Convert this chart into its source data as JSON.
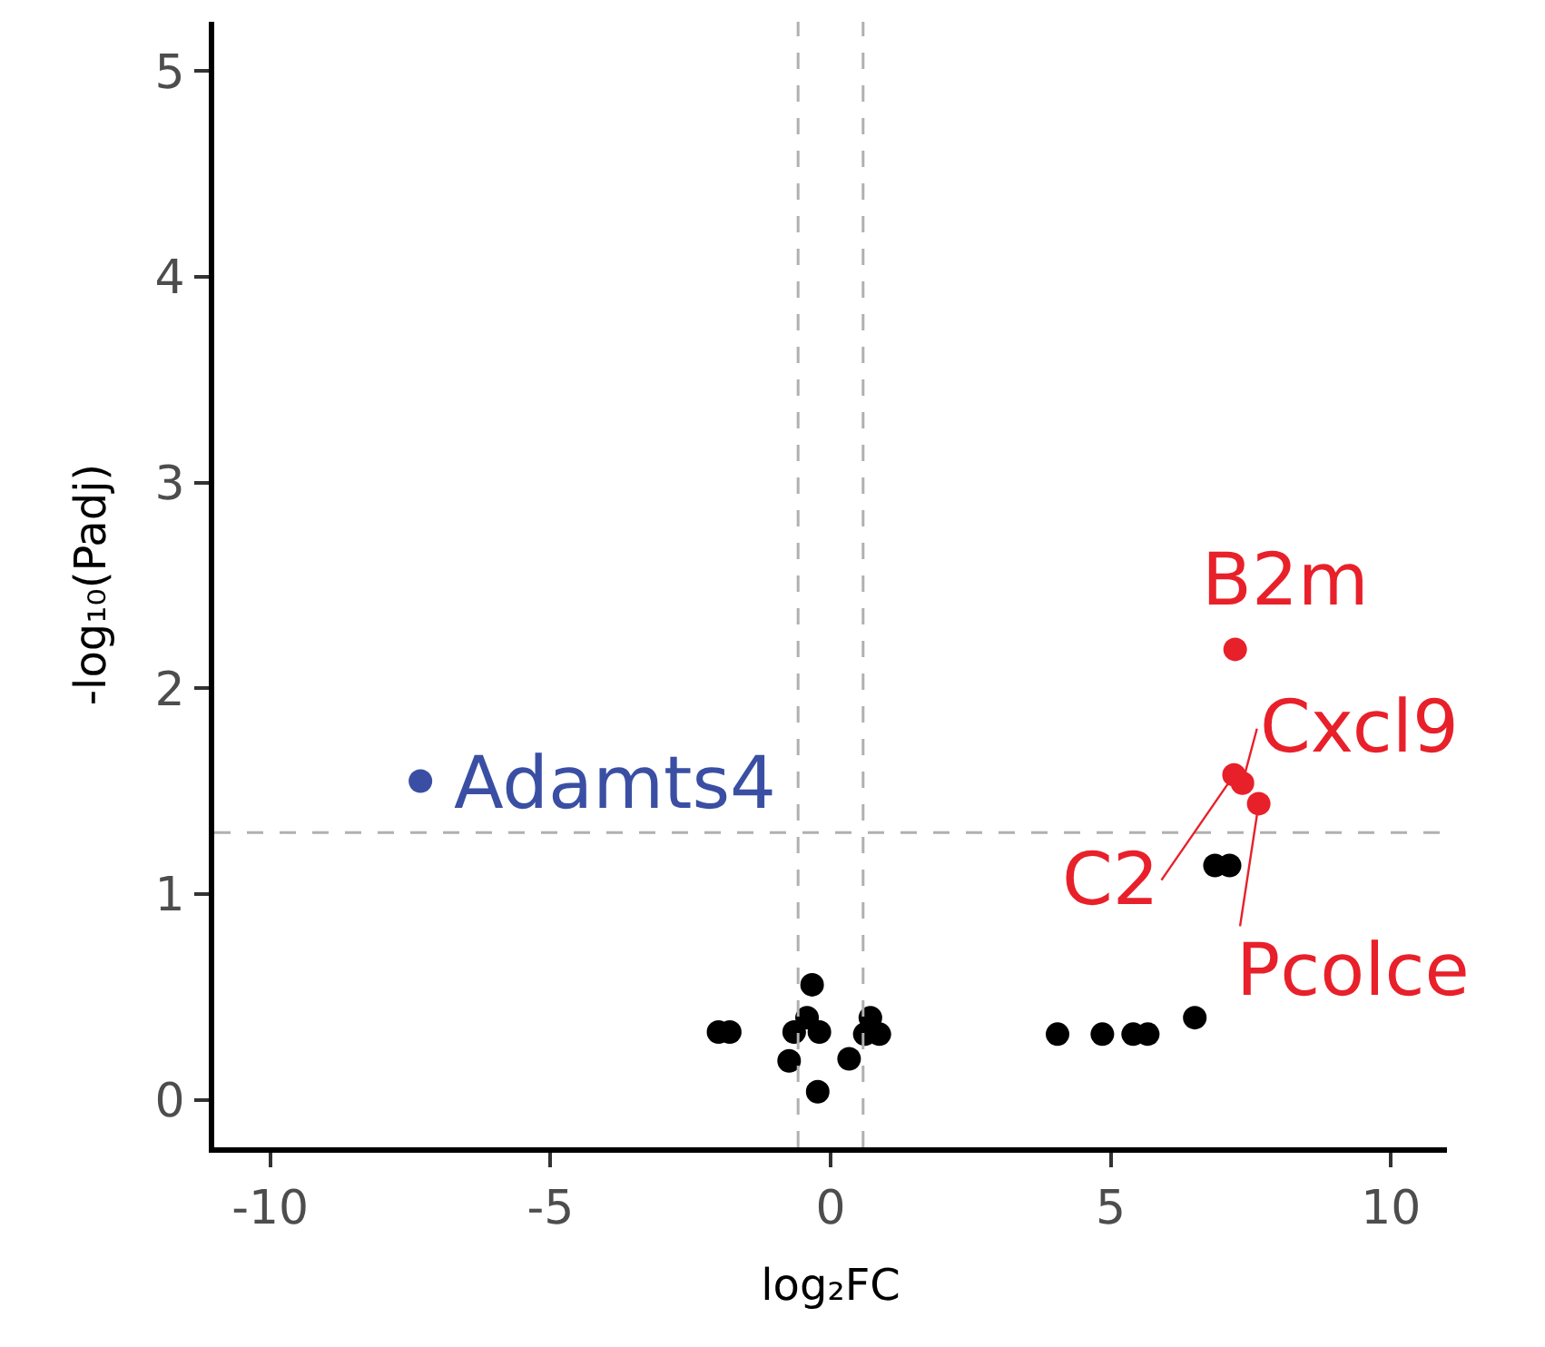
{
  "chart_data": {
    "type": "scatter",
    "xlabel": "log₂FC",
    "ylabel": "-log₁₀(Padj)",
    "xlim": [
      -11,
      11
    ],
    "ylim": [
      -0.23,
      5.24
    ],
    "xticks": [
      -10,
      -5,
      0,
      5,
      10
    ],
    "yticks": [
      0,
      1,
      2,
      3,
      4,
      5
    ],
    "grid": false,
    "marker": "circle",
    "series": [
      {
        "color": "#000000",
        "x": [
          -2.0,
          -1.8,
          -0.33,
          -0.42,
          -0.65,
          -0.2,
          -0.74,
          -0.23,
          0.33,
          0.71,
          0.87,
          0.61,
          4.05,
          4.85,
          5.4,
          5.66,
          6.5,
          6.86,
          7.12
        ],
        "values": [
          0.33,
          0.33,
          0.56,
          0.4,
          0.33,
          0.33,
          0.19,
          0.04,
          0.2,
          0.4,
          0.32,
          0.32,
          0.32,
          0.32,
          0.32,
          0.32,
          0.4,
          1.14,
          1.14
        ]
      },
      {
        "color": "#e8202a",
        "x": [
          7.22,
          7.2,
          7.35,
          7.64
        ],
        "values": [
          2.19,
          1.58,
          1.54,
          1.44
        ]
      },
      {
        "color": "#3a4fa3",
        "x": [
          -7.32
        ],
        "values": [
          1.55
        ]
      }
    ],
    "ref_lines": [
      {
        "axis": "x",
        "value": -0.58,
        "color": "#b0b0b0",
        "line_style": "dashed"
      },
      {
        "axis": "x",
        "value": 0.58,
        "color": "#b0b0b0",
        "line_style": "dashed"
      },
      {
        "axis": "y",
        "value": 1.3,
        "color": "#b0b0b0",
        "line_style": "dashed"
      }
    ],
    "annotations": [
      {
        "text": "B2m",
        "x": 7.22,
        "y": 2.19
      },
      {
        "text": "C2",
        "x": 7.2,
        "y": 1.58
      },
      {
        "text": "Cxcl9",
        "x": 7.35,
        "y": 1.54
      },
      {
        "text": "Pcolce",
        "x": 7.64,
        "y": 1.44
      },
      {
        "text": "Adamts4",
        "x": -7.32,
        "y": 1.55
      }
    ]
  }
}
